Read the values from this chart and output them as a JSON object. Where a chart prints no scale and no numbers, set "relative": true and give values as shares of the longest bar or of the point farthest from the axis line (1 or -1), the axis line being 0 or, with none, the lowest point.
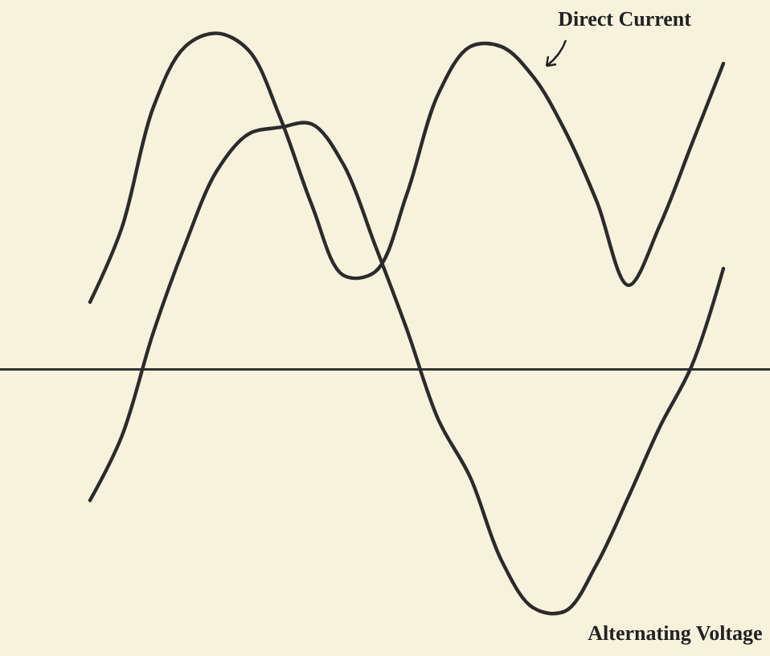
{
  "chart_data": {
    "type": "line",
    "relative": true,
    "categories": [
      null,
      null,
      null,
      null,
      null,
      null,
      null,
      null,
      null,
      null,
      null,
      null,
      null,
      null,
      null,
      null,
      null,
      null,
      null,
      null,
      null
    ],
    "series": [
      {
        "name": "Direct Current",
        "color": "#2b2b2b",
        "values": [
          0.2,
          0.42,
          0.78,
          0.96,
          1,
          0.95,
          0.75,
          0.49,
          0.28,
          0.29,
          0.52,
          0.82,
          0.96,
          0.96,
          0.87,
          0.71,
          0.5,
          0.25,
          0.43,
          0.67,
          0.91
        ]
      },
      {
        "name": "Alternating Voltage",
        "color": "#2b2b2b",
        "values": [
          -0.39,
          -0.2,
          0.11,
          0.37,
          0.59,
          0.7,
          0.72,
          0.73,
          0.61,
          0.37,
          0.12,
          -0.15,
          -0.32,
          -0.57,
          -0.71,
          -0.72,
          -0.58,
          -0.38,
          -0.17,
          0.01,
          0.3
        ]
      }
    ]
  }
}
